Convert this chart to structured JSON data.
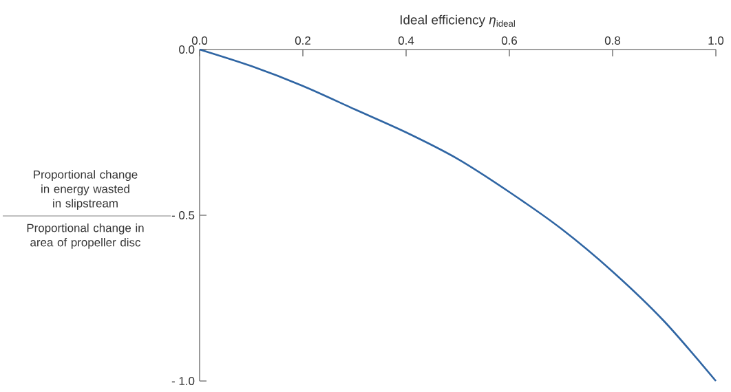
{
  "chart_data": {
    "type": "line",
    "xlabel": "Ideal efficiency  *η*$_{ideal}$",
    "ylabel": "Proportional change in energy wasted in slipstream",
    "annotations": [
      "Proportional change in area of propeller disc"
    ],
    "x": [
      0,
      0.1,
      0.2,
      0.3,
      0.4,
      0.5,
      0.6,
      0.7,
      0.8,
      0.9,
      1.0
    ],
    "series": [
      {
        "color": "#2f65a3",
        "values": [
          0,
          -0.05,
          -0.11,
          -0.18,
          -0.25,
          -0.33,
          -0.43,
          -0.54,
          -0.67,
          -0.82,
          -1.0
        ]
      }
    ],
    "xlim": [
      0,
      1
    ],
    "ylim": [
      -1,
      0
    ],
    "xticks": [
      {
        "value": 0,
        "label": "0.0"
      },
      0.2,
      0.4,
      0.6,
      0.8,
      {
        "value": 1,
        "label": "1.0"
      }
    ],
    "yticks": [
      {
        "value": 0,
        "label": "0.0"
      },
      {
        "value": -0.5,
        "label": "- 0.5"
      },
      {
        "value": -1,
        "label": "- 1.0"
      }
    ],
    "grid": false,
    "marker": "none",
    "line_style": "solid"
  }
}
